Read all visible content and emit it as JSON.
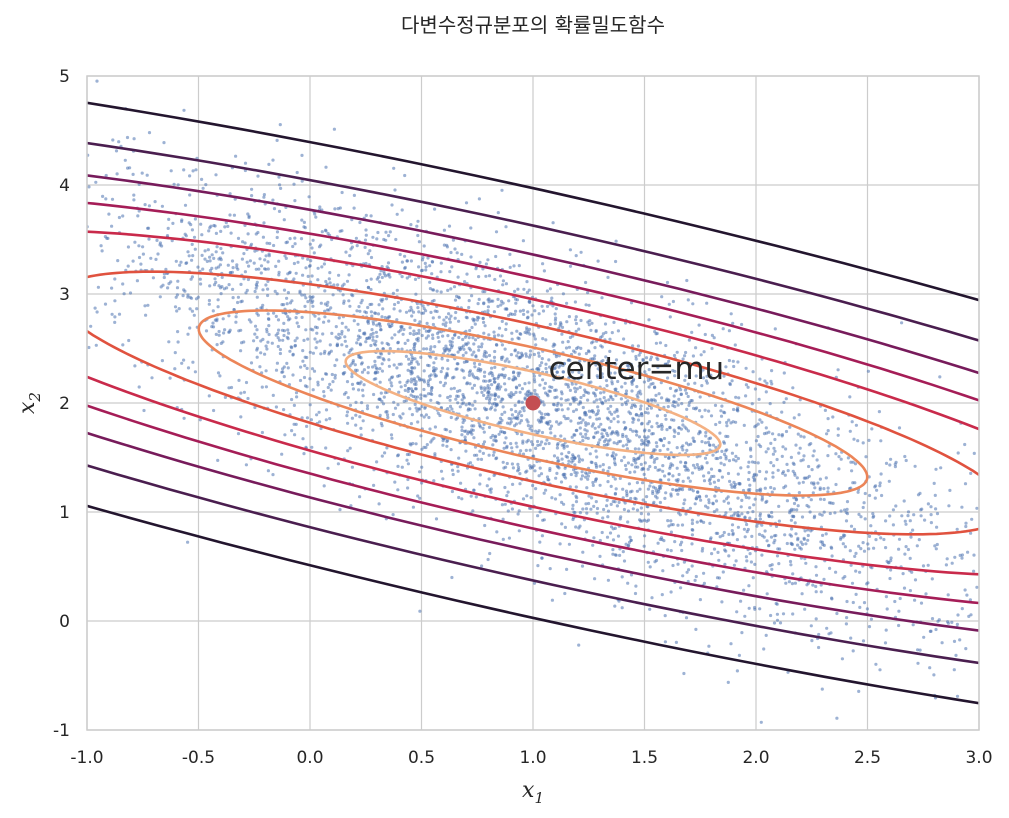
{
  "chart_data": {
    "type": "scatter",
    "title": "다변수정규분포의 확률밀도함수",
    "xlabel": "x",
    "xlabel_sub": "1",
    "ylabel": "x",
    "ylabel_sub": "2",
    "xlim": [
      -1.0,
      3.0
    ],
    "ylim": [
      -1,
      5
    ],
    "xticks": [
      -1.0,
      -0.5,
      0.0,
      0.5,
      1.0,
      1.5,
      2.0,
      2.5,
      3.0
    ],
    "xtick_labels": [
      "-1.0",
      "-0.5",
      "0.0",
      "0.5",
      "1.0",
      "1.5",
      "2.0",
      "2.5",
      "3.0"
    ],
    "yticks": [
      -1,
      0,
      1,
      2,
      3,
      4,
      5
    ],
    "ytick_labels": [
      "-1",
      "0",
      "1",
      "2",
      "3",
      "4",
      "5"
    ],
    "grid": true,
    "center": {
      "x": 1.0,
      "y": 2.0,
      "color": "#c44e52"
    },
    "annotation": {
      "text": "center=mu",
      "x": 1.07,
      "y": 2.22
    },
    "samples": {
      "count": 4500,
      "mean": [
        1.0,
        2.0
      ],
      "cov": [
        [
          1.0,
          -0.8
        ],
        [
          -0.8,
          1.0
        ]
      ],
      "color": "#4c72b0"
    },
    "contours": {
      "mean": [
        1.0,
        2.0
      ],
      "axis_directions": [
        [
          0.8944,
          -0.4472
        ],
        [
          0.4472,
          0.8944
        ]
      ],
      "levels": [
        {
          "a": 0.93,
          "b": 0.26,
          "color": "#f4b183"
        },
        {
          "a": 1.66,
          "b": 0.46,
          "color": "#ec8558"
        },
        {
          "a": 2.36,
          "b": 0.65,
          "color": "#e0523f"
        },
        {
          "a": 3.1,
          "b": 0.86,
          "color": "#c92a4b"
        },
        {
          "a": 3.75,
          "b": 1.04,
          "color": "#a51d57"
        },
        {
          "a": 4.45,
          "b": 1.23,
          "color": "#771b5b"
        },
        {
          "a": 5.3,
          "b": 1.47,
          "color": "#4a1e4f"
        },
        {
          "a": 6.4,
          "b": 1.78,
          "color": "#23152e"
        }
      ]
    }
  }
}
